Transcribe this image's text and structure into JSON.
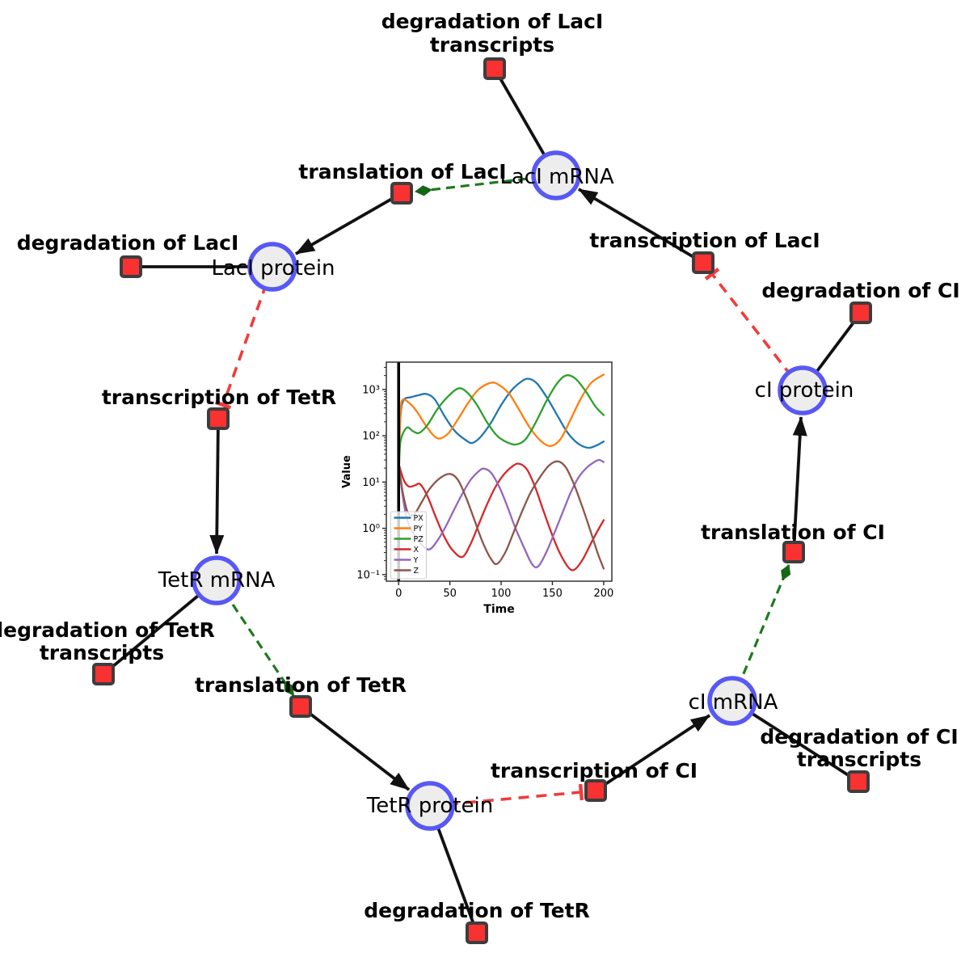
{
  "network": {
    "colors": {
      "species_fill": "#ededed",
      "species_border": "#5858f5",
      "reaction_fill": "#f93131",
      "reaction_border": "#3d3d3d",
      "edge_default": "#111111",
      "edge_catalysis": "#1f7a1f",
      "edge_inhibition": "#f23b3b"
    },
    "species": [
      {
        "id": "laci-mrna",
        "label": "LacI mRNA"
      },
      {
        "id": "laci-protein",
        "label": "LacI protein"
      },
      {
        "id": "tetr-mrna",
        "label": "TetR mRNA"
      },
      {
        "id": "tetr-protein",
        "label": "TetR protein"
      },
      {
        "id": "ci-mrna",
        "label": "cI mRNA"
      },
      {
        "id": "ci-protein",
        "label": "cI protein"
      }
    ],
    "reactions": [
      {
        "id": "deg-laci-transcripts",
        "lines": [
          "degradation of LacI",
          "transcripts"
        ]
      },
      {
        "id": "translation-laci",
        "lines": [
          "translation of LacI"
        ]
      },
      {
        "id": "deg-laci",
        "lines": [
          "degradation of LacI"
        ]
      },
      {
        "id": "transcription-tetr",
        "lines": [
          "transcription of TetR"
        ]
      },
      {
        "id": "deg-tetr-transcripts",
        "lines": [
          "degradation of TetR",
          "transcripts"
        ]
      },
      {
        "id": "translation-tetr",
        "lines": [
          "translation of TetR"
        ]
      },
      {
        "id": "deg-tetr",
        "lines": [
          "degradation of TetR"
        ]
      },
      {
        "id": "transcription-ci",
        "lines": [
          "transcription of CI"
        ]
      },
      {
        "id": "deg-ci-transcripts",
        "lines": [
          "degradation of CI",
          "transcripts"
        ]
      },
      {
        "id": "translation-ci",
        "lines": [
          "translation of CI"
        ]
      },
      {
        "id": "deg-ci",
        "lines": [
          "degradation of CI"
        ]
      },
      {
        "id": "transcription-laci",
        "lines": [
          "transcription of LacI"
        ]
      }
    ],
    "edges": [
      {
        "source": "laci-mrna",
        "target": "deg-laci-transcripts",
        "type": "consumption"
      },
      {
        "source": "transcription-laci",
        "target": "laci-mrna",
        "type": "production"
      },
      {
        "source": "laci-mrna",
        "target": "translation-laci",
        "type": "catalysis"
      },
      {
        "source": "translation-laci",
        "target": "laci-protein",
        "type": "production"
      },
      {
        "source": "laci-protein",
        "target": "deg-laci",
        "type": "consumption"
      },
      {
        "source": "laci-protein",
        "target": "transcription-tetr",
        "type": "inhibition"
      },
      {
        "source": "transcription-tetr",
        "target": "tetr-mrna",
        "type": "production"
      },
      {
        "source": "tetr-mrna",
        "target": "deg-tetr-transcripts",
        "type": "consumption"
      },
      {
        "source": "tetr-mrna",
        "target": "translation-tetr",
        "type": "catalysis"
      },
      {
        "source": "translation-tetr",
        "target": "tetr-protein",
        "type": "production"
      },
      {
        "source": "tetr-protein",
        "target": "deg-tetr",
        "type": "consumption"
      },
      {
        "source": "tetr-protein",
        "target": "transcription-ci",
        "type": "inhibition"
      },
      {
        "source": "transcription-ci",
        "target": "ci-mrna",
        "type": "production"
      },
      {
        "source": "ci-mrna",
        "target": "deg-ci-transcripts",
        "type": "consumption"
      },
      {
        "source": "ci-mrna",
        "target": "translation-ci",
        "type": "catalysis"
      },
      {
        "source": "translation-ci",
        "target": "ci-protein",
        "type": "production"
      },
      {
        "source": "ci-protein",
        "target": "deg-ci",
        "type": "consumption"
      },
      {
        "source": "ci-protein",
        "target": "transcription-laci",
        "type": "inhibition"
      }
    ]
  },
  "chart_data": {
    "type": "line",
    "title": "",
    "xlabel": "Time",
    "ylabel": "Value",
    "yscale": "log",
    "xlim": [
      -12,
      208
    ],
    "ylim": [
      0.072,
      3900
    ],
    "xticks": [
      0,
      50,
      100,
      150,
      200
    ],
    "ytick_values": [
      0.1,
      1,
      10,
      100,
      1000
    ],
    "ytick_labels": [
      "10⁻¹",
      "10⁰",
      "10¹",
      "10²",
      "10³"
    ],
    "legend_position": "lower left",
    "vline_x": 0,
    "series": [
      {
        "name": "PX",
        "color": "#1f77b4",
        "points": [
          [
            0.5,
            60
          ],
          [
            2,
            300
          ],
          [
            5,
            600
          ],
          [
            12,
            680
          ],
          [
            20,
            760
          ],
          [
            27,
            800
          ],
          [
            35,
            620
          ],
          [
            45,
            260
          ],
          [
            55,
            125
          ],
          [
            65,
            82
          ],
          [
            72,
            70
          ],
          [
            80,
            95
          ],
          [
            90,
            190
          ],
          [
            100,
            460
          ],
          [
            110,
            950
          ],
          [
            120,
            1500
          ],
          [
            127,
            1700
          ],
          [
            135,
            1350
          ],
          [
            145,
            650
          ],
          [
            155,
            270
          ],
          [
            165,
            115
          ],
          [
            175,
            68
          ],
          [
            185,
            55
          ],
          [
            193,
            62
          ],
          [
            200,
            75
          ]
        ]
      },
      {
        "name": "PY",
        "color": "#ff7f0e",
        "points": [
          [
            0.5,
            40
          ],
          [
            2,
            350
          ],
          [
            4,
            600
          ],
          [
            10,
            520
          ],
          [
            18,
            330
          ],
          [
            28,
            150
          ],
          [
            38,
            88
          ],
          [
            48,
            110
          ],
          [
            58,
            230
          ],
          [
            68,
            520
          ],
          [
            78,
            1000
          ],
          [
            90,
            1400
          ],
          [
            98,
            1250
          ],
          [
            108,
            800
          ],
          [
            118,
            350
          ],
          [
            128,
            150
          ],
          [
            138,
            80
          ],
          [
            148,
            60
          ],
          [
            158,
            85
          ],
          [
            168,
            230
          ],
          [
            178,
            650
          ],
          [
            188,
            1400
          ],
          [
            200,
            2100
          ]
        ]
      },
      {
        "name": "PZ",
        "color": "#2ca02c",
        "points": [
          [
            0.5,
            25
          ],
          [
            2,
            80
          ],
          [
            8,
            150
          ],
          [
            14,
            125
          ],
          [
            20,
            115
          ],
          [
            28,
            170
          ],
          [
            38,
            380
          ],
          [
            48,
            700
          ],
          [
            58,
            1050
          ],
          [
            66,
            900
          ],
          [
            76,
            480
          ],
          [
            86,
            200
          ],
          [
            96,
            100
          ],
          [
            106,
            72
          ],
          [
            115,
            65
          ],
          [
            124,
            85
          ],
          [
            134,
            200
          ],
          [
            144,
            550
          ],
          [
            154,
            1300
          ],
          [
            163,
            2000
          ],
          [
            172,
            1750
          ],
          [
            182,
            950
          ],
          [
            192,
            430
          ],
          [
            200,
            280
          ]
        ]
      },
      {
        "name": "X",
        "color": "#d62728",
        "points": [
          [
            0,
            25
          ],
          [
            5,
            11
          ],
          [
            10,
            8
          ],
          [
            16,
            8.5
          ],
          [
            21,
            9
          ],
          [
            28,
            5
          ],
          [
            36,
            1.8
          ],
          [
            44,
            0.7
          ],
          [
            52,
            0.35
          ],
          [
            62,
            0.24
          ],
          [
            70,
            0.45
          ],
          [
            78,
            1.2
          ],
          [
            86,
            3.2
          ],
          [
            94,
            7.5
          ],
          [
            102,
            14
          ],
          [
            110,
            21
          ],
          [
            117,
            25
          ],
          [
            125,
            19
          ],
          [
            133,
            8
          ],
          [
            141,
            2.5
          ],
          [
            149,
            0.8
          ],
          [
            157,
            0.3
          ],
          [
            166,
            0.14
          ],
          [
            172,
            0.13
          ],
          [
            180,
            0.22
          ],
          [
            190,
            0.6
          ],
          [
            200,
            1.5
          ]
        ]
      },
      {
        "name": "Y",
        "color": "#9467bd",
        "points": [
          [
            0,
            25
          ],
          [
            4,
            5
          ],
          [
            8,
            1.6
          ],
          [
            14,
            0.8
          ],
          [
            22,
            0.45
          ],
          [
            30,
            0.35
          ],
          [
            38,
            0.55
          ],
          [
            46,
            1.1
          ],
          [
            54,
            2.5
          ],
          [
            62,
            5.5
          ],
          [
            70,
            11
          ],
          [
            78,
            17
          ],
          [
            83,
            19.5
          ],
          [
            90,
            16
          ],
          [
            98,
            8
          ],
          [
            106,
            3
          ],
          [
            114,
            1
          ],
          [
            122,
            0.4
          ],
          [
            130,
            0.17
          ],
          [
            136,
            0.15
          ],
          [
            144,
            0.3
          ],
          [
            152,
            0.8
          ],
          [
            160,
            2.2
          ],
          [
            168,
            6
          ],
          [
            176,
            13
          ],
          [
            184,
            21
          ],
          [
            192,
            28
          ],
          [
            196,
            30
          ],
          [
            200,
            27
          ]
        ]
      },
      {
        "name": "Z",
        "color": "#8c564b",
        "points": [
          [
            0,
            25
          ],
          [
            4,
            6
          ],
          [
            9,
            2.2
          ],
          [
            15,
            2
          ],
          [
            22,
            3.5
          ],
          [
            30,
            7
          ],
          [
            40,
            12
          ],
          [
            50,
            15
          ],
          [
            58,
            11
          ],
          [
            66,
            4.5
          ],
          [
            74,
            1.5
          ],
          [
            82,
            0.5
          ],
          [
            90,
            0.22
          ],
          [
            96,
            0.17
          ],
          [
            104,
            0.3
          ],
          [
            112,
            0.8
          ],
          [
            120,
            2.2
          ],
          [
            128,
            5.5
          ],
          [
            136,
            11
          ],
          [
            146,
            22
          ],
          [
            155,
            28
          ],
          [
            163,
            21
          ],
          [
            171,
            9
          ],
          [
            179,
            3
          ],
          [
            187,
            0.9
          ],
          [
            194,
            0.3
          ],
          [
            200,
            0.135
          ]
        ]
      }
    ]
  }
}
